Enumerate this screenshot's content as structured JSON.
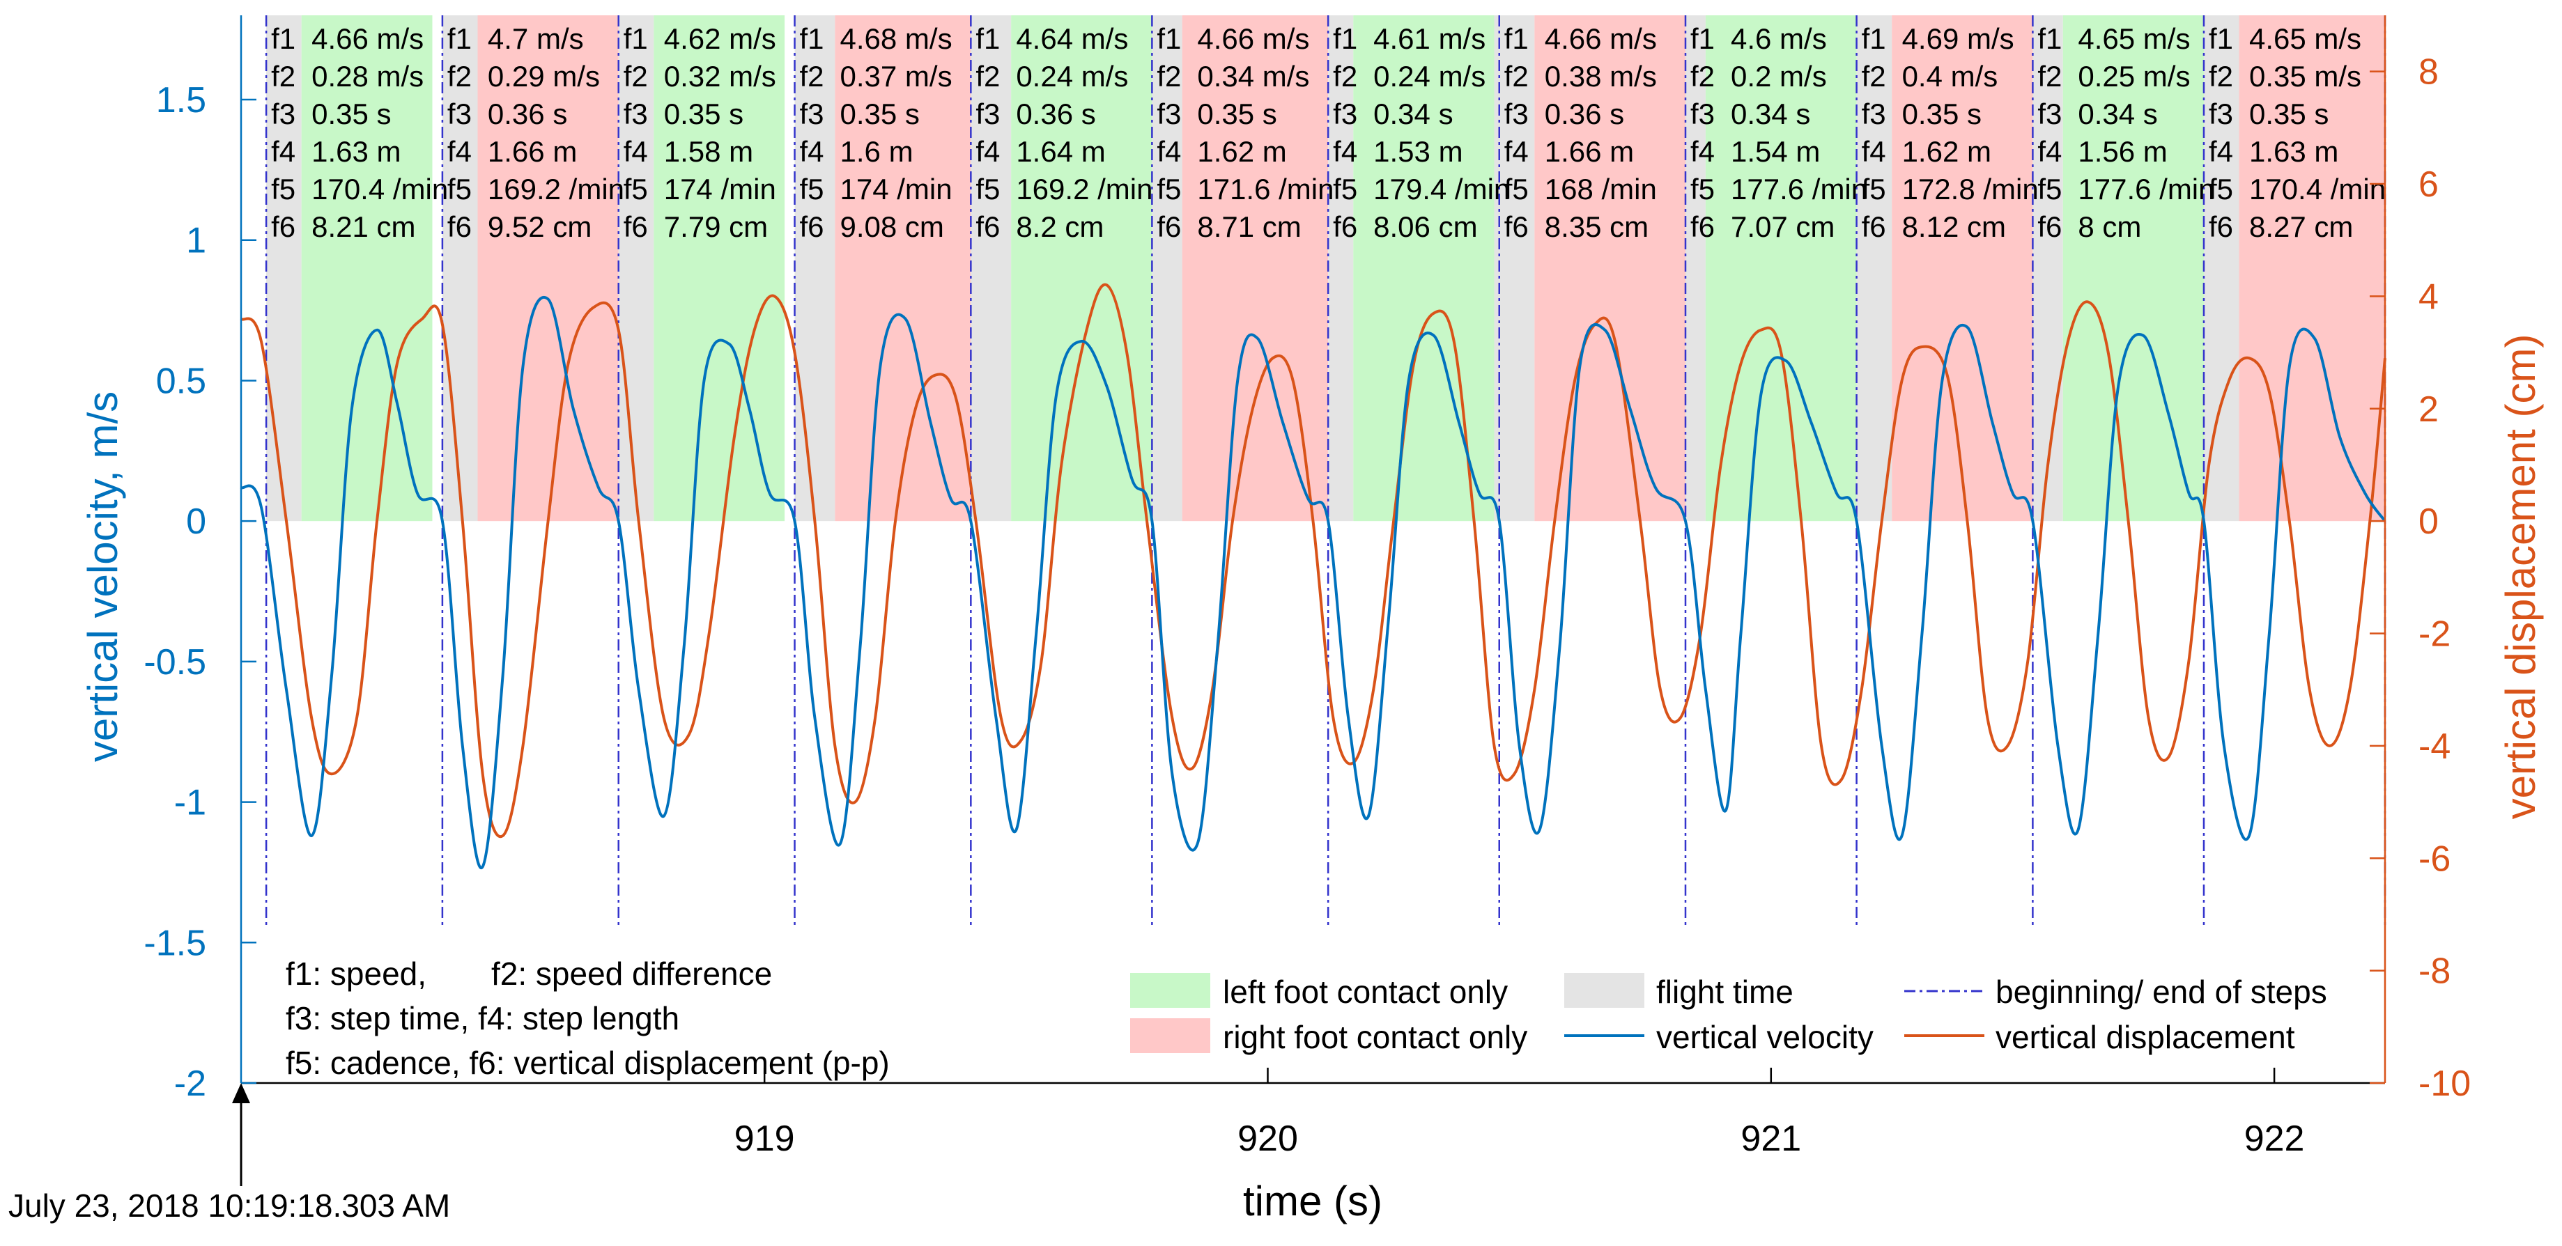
{
  "chart_data": {
    "type": "line",
    "xlabel": "time (s)",
    "ylabel_left": "vertical velocity, m/s",
    "ylabel_right": "vertical displacement (cm)",
    "x_ticks": [
      919,
      920,
      921,
      922
    ],
    "xlim": [
      917.96,
      922.22
    ],
    "ylim_left": [
      -2,
      1.8
    ],
    "yticks_left": [
      -2,
      -1.5,
      -1,
      -0.5,
      0,
      0.5,
      1,
      1.5
    ],
    "ylim_right": [
      -10,
      9
    ],
    "yticks_right": [
      -10,
      -8,
      -6,
      -4,
      -2,
      0,
      2,
      4,
      6,
      8
    ],
    "start_timestamp": "July 23, 2018 10:19:18.303 AM",
    "colors": {
      "velocity": "#0072BD",
      "displacement": "#D95319",
      "left_contact": "#C8F8C8",
      "right_contact": "#FFC8C8",
      "flight": "#E4E4E4",
      "step_line": "#3333CC",
      "left_axis": "#0072BD",
      "right_axis": "#D95319"
    },
    "step_boundaries": [
      918.01,
      918.36,
      918.71,
      919.06,
      919.41,
      919.77,
      920.12,
      920.46,
      920.83,
      921.17,
      921.52,
      921.86,
      922.22
    ],
    "phases": [
      {
        "type": "flight",
        "start": 918.01,
        "end": 918.08
      },
      {
        "type": "left",
        "start": 918.08,
        "end": 918.34
      },
      {
        "type": "flight",
        "start": 918.36,
        "end": 918.43
      },
      {
        "type": "right",
        "start": 918.43,
        "end": 918.71
      },
      {
        "type": "flight",
        "start": 918.71,
        "end": 918.78
      },
      {
        "type": "left",
        "start": 918.78,
        "end": 919.04
      },
      {
        "type": "flight",
        "start": 919.06,
        "end": 919.14
      },
      {
        "type": "right",
        "start": 919.14,
        "end": 919.41
      },
      {
        "type": "flight",
        "start": 919.41,
        "end": 919.49
      },
      {
        "type": "left",
        "start": 919.49,
        "end": 919.77
      },
      {
        "type": "flight",
        "start": 919.77,
        "end": 919.83
      },
      {
        "type": "right",
        "start": 919.83,
        "end": 920.12
      },
      {
        "type": "flight",
        "start": 920.12,
        "end": 920.17
      },
      {
        "type": "left",
        "start": 920.17,
        "end": 920.45
      },
      {
        "type": "flight",
        "start": 920.45,
        "end": 920.53
      },
      {
        "type": "right",
        "start": 920.53,
        "end": 920.83
      },
      {
        "type": "flight",
        "start": 920.83,
        "end": 920.87
      },
      {
        "type": "left",
        "start": 920.87,
        "end": 921.17
      },
      {
        "type": "flight",
        "start": 921.17,
        "end": 921.24
      },
      {
        "type": "right",
        "start": 921.24,
        "end": 921.52
      },
      {
        "type": "flight",
        "start": 921.52,
        "end": 921.58
      },
      {
        "type": "left",
        "start": 921.58,
        "end": 921.86
      },
      {
        "type": "flight",
        "start": 921.86,
        "end": 921.93
      },
      {
        "type": "right",
        "start": 921.93,
        "end": 922.22
      }
    ],
    "step_labels": [
      "f1",
      "f2",
      "f3",
      "f4",
      "f5",
      "f6"
    ],
    "steps": [
      {
        "f1": "4.66 m/s",
        "f2": "0.28 m/s",
        "f3": "0.35 s",
        "f4": "1.63 m",
        "f5": "170.4 /min",
        "f6": "8.21 cm"
      },
      {
        "f1": "4.7 m/s",
        "f2": "0.29 m/s",
        "f3": "0.36 s",
        "f4": "1.66 m",
        "f5": "169.2 /min",
        "f6": "9.52 cm"
      },
      {
        "f1": "4.62 m/s",
        "f2": "0.32 m/s",
        "f3": "0.35 s",
        "f4": "1.58 m",
        "f5": "174 /min",
        "f6": "7.79 cm"
      },
      {
        "f1": "4.68 m/s",
        "f2": "0.37 m/s",
        "f3": "0.35 s",
        "f4": "1.6 m",
        "f5": "174 /min",
        "f6": "9.08 cm"
      },
      {
        "f1": "4.64 m/s",
        "f2": "0.24 m/s",
        "f3": "0.36 s",
        "f4": "1.64 m",
        "f5": "169.2 /min",
        "f6": "8.2 cm"
      },
      {
        "f1": "4.66 m/s",
        "f2": "0.34 m/s",
        "f3": "0.35 s",
        "f4": "1.62 m",
        "f5": "171.6 /min",
        "f6": "8.71 cm"
      },
      {
        "f1": "4.61 m/s",
        "f2": "0.24 m/s",
        "f3": "0.34 s",
        "f4": "1.53 m",
        "f5": "179.4 /min",
        "f6": "8.06 cm"
      },
      {
        "f1": "4.66 m/s",
        "f2": "0.38 m/s",
        "f3": "0.36 s",
        "f4": "1.66 m",
        "f5": "168 /min",
        "f6": "8.35 cm"
      },
      {
        "f1": "4.6 m/s",
        "f2": "0.2 m/s",
        "f3": "0.34 s",
        "f4": "1.54 m",
        "f5": "177.6 /min",
        "f6": "7.07 cm"
      },
      {
        "f1": "4.69 m/s",
        "f2": "0.4 m/s",
        "f3": "0.35 s",
        "f4": "1.62 m",
        "f5": "172.8 /min",
        "f6": "8.12 cm"
      },
      {
        "f1": "4.65 m/s",
        "f2": "0.25 m/s",
        "f3": "0.34 s",
        "f4": "1.56 m",
        "f5": "177.6 /min",
        "f6": "8 cm"
      },
      {
        "f1": "4.65 m/s",
        "f2": "0.35 m/s",
        "f3": "0.35 s",
        "f4": "1.63 m",
        "f5": "170.4 /min",
        "f6": "8.27 cm"
      }
    ],
    "velocity_series": {
      "name": "vertical velocity",
      "x": [
        917.96,
        918.0,
        918.05,
        918.1,
        918.14,
        918.18,
        918.23,
        918.27,
        918.31,
        918.36,
        918.4,
        918.44,
        918.48,
        918.52,
        918.57,
        918.62,
        918.67,
        918.71,
        918.75,
        918.8,
        918.84,
        918.88,
        918.93,
        918.97,
        919.01,
        919.06,
        919.1,
        919.15,
        919.19,
        919.23,
        919.28,
        919.33,
        919.37,
        919.41,
        919.46,
        919.5,
        919.54,
        919.58,
        919.63,
        919.68,
        919.73,
        919.77,
        919.81,
        919.86,
        919.9,
        919.94,
        919.98,
        920.03,
        920.08,
        920.12,
        920.16,
        920.2,
        920.24,
        920.28,
        920.33,
        920.38,
        920.42,
        920.46,
        920.5,
        920.54,
        920.58,
        920.62,
        920.67,
        920.72,
        920.77,
        920.83,
        920.87,
        920.91,
        920.94,
        920.98,
        921.03,
        921.08,
        921.13,
        921.17,
        921.22,
        921.26,
        921.3,
        921.34,
        921.39,
        921.44,
        921.48,
        921.52,
        921.57,
        921.61,
        921.65,
        921.69,
        921.74,
        921.79,
        921.83,
        921.86,
        921.9,
        921.95,
        921.99,
        922.03,
        922.08,
        922.13,
        922.18,
        922.22
      ],
      "y": [
        0.12,
        0.05,
        -0.6,
        -1.12,
        -0.55,
        0.4,
        0.68,
        0.42,
        0.1,
        0.0,
        -0.8,
        -1.23,
        -0.55,
        0.55,
        0.79,
        0.4,
        0.12,
        0.0,
        -0.6,
        -1.05,
        -0.45,
        0.5,
        0.63,
        0.4,
        0.1,
        0.0,
        -0.7,
        -1.15,
        -0.45,
        0.55,
        0.72,
        0.35,
        0.08,
        0.0,
        -0.7,
        -1.1,
        -0.4,
        0.45,
        0.64,
        0.48,
        0.15,
        0.0,
        -0.9,
        -1.15,
        -0.45,
        0.5,
        0.65,
        0.35,
        0.08,
        0.0,
        -0.7,
        -1.05,
        -0.35,
        0.5,
        0.66,
        0.35,
        0.1,
        0.0,
        -0.8,
        -1.1,
        -0.45,
        0.55,
        0.68,
        0.4,
        0.12,
        0.0,
        -0.6,
        -1.03,
        -0.4,
        0.45,
        0.57,
        0.35,
        0.1,
        0.0,
        -0.8,
        -1.12,
        -0.4,
        0.5,
        0.69,
        0.35,
        0.1,
        0.0,
        -0.8,
        -1.1,
        -0.4,
        0.48,
        0.66,
        0.38,
        0.1,
        0.0,
        -0.8,
        -1.12,
        -0.4,
        0.55,
        0.65,
        0.3,
        0.1,
        0.0
      ]
    },
    "displacement_series": {
      "name": "vertical displacement",
      "x": [
        917.96,
        918.0,
        918.05,
        918.1,
        918.14,
        918.19,
        918.23,
        918.27,
        918.32,
        918.36,
        918.4,
        918.44,
        918.48,
        918.52,
        918.57,
        918.61,
        918.66,
        918.71,
        918.75,
        918.8,
        918.85,
        918.89,
        918.94,
        918.98,
        919.02,
        919.06,
        919.1,
        919.14,
        919.18,
        919.22,
        919.26,
        919.3,
        919.34,
        919.38,
        919.42,
        919.47,
        919.51,
        919.55,
        919.59,
        919.64,
        919.68,
        919.72,
        919.76,
        919.81,
        919.85,
        919.89,
        919.93,
        919.97,
        920.01,
        920.05,
        920.09,
        920.13,
        920.17,
        920.21,
        920.25,
        920.29,
        920.33,
        920.37,
        920.41,
        920.45,
        920.49,
        920.53,
        920.57,
        920.61,
        920.65,
        920.69,
        920.74,
        920.78,
        920.82,
        920.86,
        920.9,
        920.94,
        920.98,
        921.02,
        921.06,
        921.1,
        921.14,
        921.18,
        921.22,
        921.26,
        921.3,
        921.35,
        921.39,
        921.43,
        921.47,
        921.51,
        921.55,
        921.59,
        921.63,
        921.67,
        921.71,
        921.75,
        921.79,
        921.83,
        921.87,
        921.91,
        921.95,
        921.99,
        922.03,
        922.07,
        922.11,
        922.15,
        922.19,
        922.22
      ],
      "y": [
        3.6,
        3.2,
        0.0,
        -3.5,
        -4.5,
        -3.5,
        0.0,
        2.8,
        3.6,
        3.5,
        0.0,
        -4.5,
        -5.6,
        -4.0,
        0.0,
        2.8,
        3.8,
        3.4,
        0.0,
        -3.5,
        -3.8,
        -2.0,
        1.5,
        3.4,
        4.0,
        3.0,
        0.0,
        -4.0,
        -5.0,
        -3.5,
        0.0,
        2.0,
        2.6,
        2.2,
        0.0,
        -3.5,
        -3.9,
        -2.5,
        1.0,
        3.4,
        4.2,
        3.0,
        0.0,
        -3.5,
        -4.4,
        -3.0,
        0.0,
        2.0,
        2.9,
        2.5,
        0.0,
        -3.5,
        -4.3,
        -3.0,
        0.0,
        2.8,
        3.7,
        3.2,
        0.0,
        -4.0,
        -4.5,
        -3.0,
        0.0,
        2.5,
        3.5,
        3.2,
        0.0,
        -3.0,
        -3.5,
        -2.0,
        1.0,
        2.8,
        3.4,
        3.0,
        0.0,
        -4.0,
        -4.6,
        -3.0,
        0.0,
        2.5,
        3.1,
        2.6,
        0.0,
        -3.5,
        -4.0,
        -2.5,
        1.0,
        3.2,
        3.9,
        3.0,
        0.0,
        -3.5,
        -4.2,
        -2.5,
        1.0,
        2.5,
        2.9,
        2.3,
        0.0,
        -3.0,
        -4.0,
        -3.0,
        0.0,
        2.9
      ]
    }
  },
  "notes": {
    "line1a": "f1: speed,",
    "line1b": "f2: speed difference",
    "line2": "f3: step time, f4: step length",
    "line3": "f5: cadence,  f6: vertical displacement (p-p)"
  },
  "legend": {
    "left_contact": "left foot contact only",
    "right_contact": "right foot contact only",
    "flight": "flight time",
    "velocity": "vertical velocity",
    "step_lines": "beginning/ end of steps",
    "displacement": "vertical displacement"
  }
}
